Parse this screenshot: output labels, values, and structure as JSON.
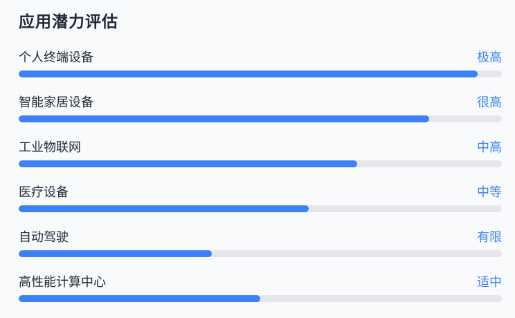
{
  "title": "应用潜力评估",
  "colors": {
    "accent": "#3b82f6",
    "track": "#e5e7eb",
    "text": "#1f2937",
    "background": "#f8fafc"
  },
  "items": [
    {
      "label": "个人终端设备",
      "level": "极高",
      "fraction": 0.95
    },
    {
      "label": "智能家居设备",
      "level": "很高",
      "fraction": 0.85
    },
    {
      "label": "工业物联网",
      "level": "中高",
      "fraction": 0.7
    },
    {
      "label": "医疗设备",
      "level": "中等",
      "fraction": 0.6
    },
    {
      "label": "自动驾驶",
      "level": "有限",
      "fraction": 0.4
    },
    {
      "label": "高性能计算中心",
      "level": "适中",
      "fraction": 0.5
    }
  ]
}
